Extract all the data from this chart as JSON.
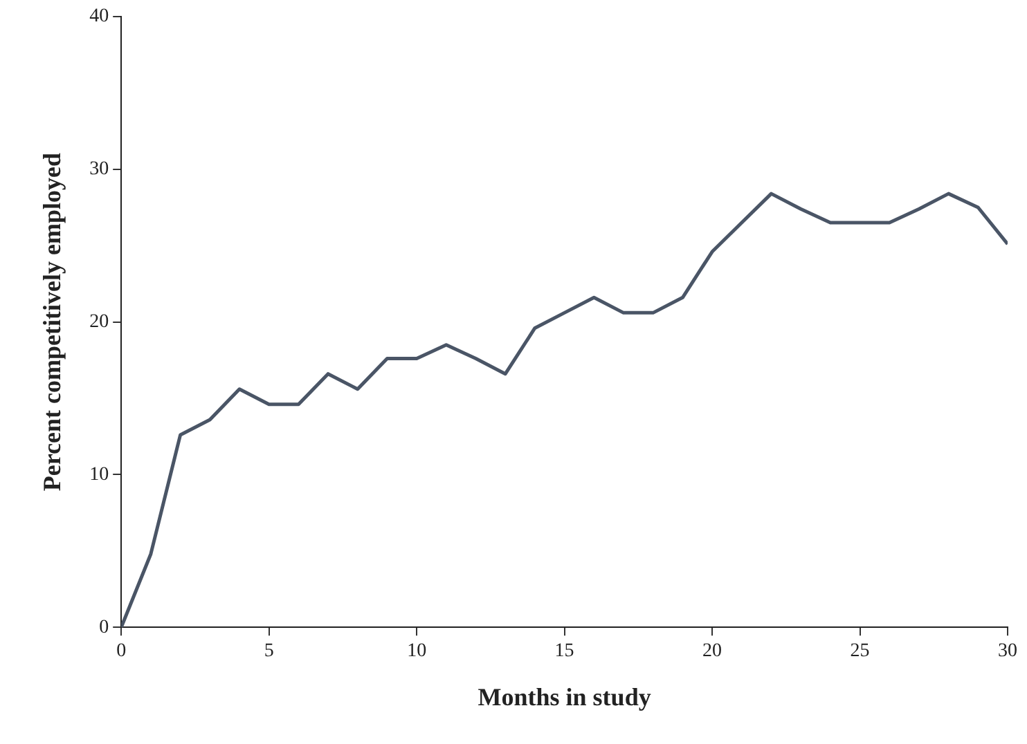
{
  "chart_data": {
    "type": "line",
    "xlabel": "Months in study",
    "ylabel": "Percent competitively employed",
    "x": [
      0,
      1,
      2,
      3,
      4,
      5,
      6,
      7,
      8,
      9,
      10,
      11,
      12,
      13,
      14,
      15,
      16,
      17,
      18,
      19,
      20,
      21,
      22,
      23,
      24,
      25,
      26,
      27,
      28,
      29,
      30
    ],
    "series": [
      {
        "color": "#4a5566",
        "values": [
          0,
          4.8,
          12.6,
          13.6,
          15.6,
          14.6,
          14.6,
          16.6,
          15.6,
          17.6,
          17.6,
          18.5,
          17.6,
          16.6,
          19.6,
          20.6,
          21.6,
          20.6,
          20.6,
          21.6,
          24.6,
          26.5,
          28.4,
          27.4,
          26.5,
          26.5,
          26.5,
          27.4,
          28.4,
          27.5,
          25.1
        ]
      }
    ],
    "xlim": [
      0,
      30
    ],
    "xticks": [
      0,
      5,
      10,
      15,
      20,
      25,
      30
    ],
    "ylim": [
      0,
      40
    ],
    "yticks": [
      0,
      10,
      20,
      30,
      40
    ],
    "grid": false,
    "legend": false,
    "marker": "none",
    "line_style": "solid"
  }
}
